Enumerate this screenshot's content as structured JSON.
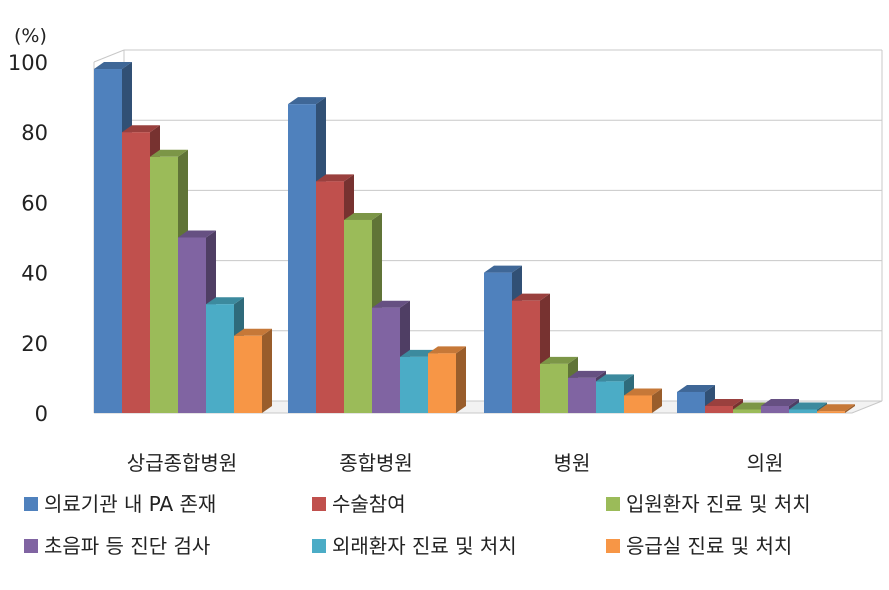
{
  "chart_data": {
    "type": "bar",
    "unit_label": "(%)",
    "categories": [
      "상급종합병원",
      "종합병원",
      "병원",
      "의원"
    ],
    "ylim": [
      0,
      100
    ],
    "yticks": [
      0,
      20,
      40,
      60,
      80,
      100
    ],
    "grid": true,
    "legend_position": "bottom",
    "series": [
      {
        "name": "의료기관 내 PA 존재",
        "color": "#4f81bd",
        "values": [
          98,
          88,
          40,
          6
        ]
      },
      {
        "name": "수술참여",
        "color": "#c0504d",
        "values": [
          80,
          66,
          32,
          2
        ]
      },
      {
        "name": "입원환자 진료 및 처치",
        "color": "#9bbb59",
        "values": [
          73,
          55,
          14,
          1
        ]
      },
      {
        "name": "초음파 등 진단 검사",
        "color": "#8064a2",
        "values": [
          50,
          30,
          10,
          2
        ]
      },
      {
        "name": "외래환자 진료 및 처치",
        "color": "#4bacc6",
        "values": [
          31,
          16,
          9,
          1
        ]
      },
      {
        "name": "응급실 진료 및 처치",
        "color": "#f79646",
        "values": [
          22,
          17,
          5,
          0.5
        ]
      }
    ]
  }
}
